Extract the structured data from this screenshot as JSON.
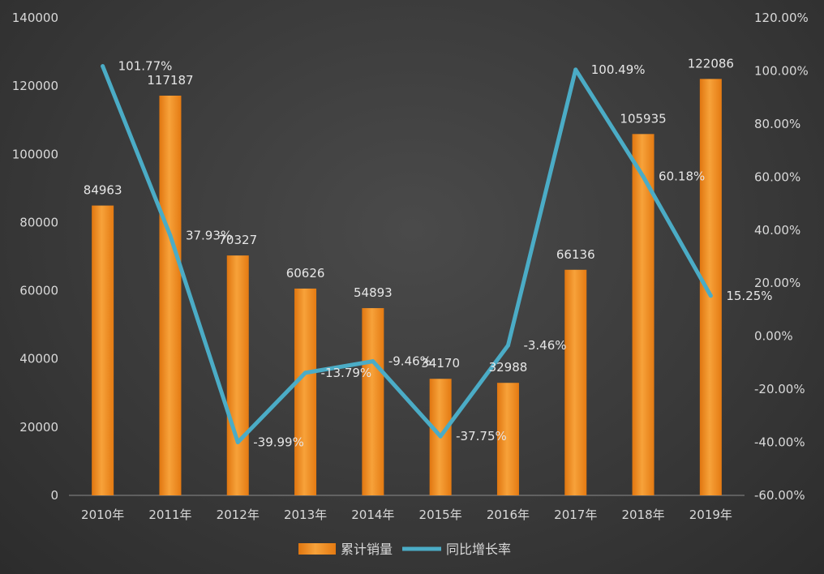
{
  "chart_data": {
    "type": "bar",
    "categories": [
      "2010年",
      "2011年",
      "2012年",
      "2013年",
      "2014年",
      "2015年",
      "2016年",
      "2017年",
      "2018年",
      "2019年"
    ],
    "series": [
      {
        "name": "累计销量",
        "type": "bar",
        "axis": "left",
        "values": [
          84963,
          117187,
          70327,
          60626,
          54893,
          34170,
          32988,
          66136,
          105935,
          122086
        ],
        "labels": [
          "84963",
          "117187",
          "70327",
          "60626",
          "54893",
          "34170",
          "32988",
          "66136",
          "105935",
          "122086"
        ],
        "color": "#f08a1e"
      },
      {
        "name": "同比增长率",
        "type": "line",
        "axis": "right",
        "values": [
          101.77,
          37.93,
          -39.99,
          -13.79,
          -9.46,
          -37.75,
          -3.46,
          100.49,
          60.18,
          15.25
        ],
        "labels": [
          "101.77%",
          "37.93%",
          "-39.99%",
          "-13.79%",
          "-9.46%",
          "-37.75%",
          "-3.46%",
          "100.49%",
          "60.18%",
          "15.25%"
        ],
        "color": "#4bacc6"
      }
    ],
    "y_left": {
      "range": [
        0,
        140000
      ],
      "ticks": [
        "0",
        "20000",
        "40000",
        "60000",
        "80000",
        "100000",
        "120000",
        "140000"
      ]
    },
    "y_right": {
      "range": [
        -60,
        120
      ],
      "ticks": [
        "-60.00%",
        "-40.00%",
        "-20.00%",
        "0.00%",
        "20.00%",
        "40.00%",
        "60.00%",
        "80.00%",
        "100.00%",
        "120.00%"
      ]
    },
    "grid": false,
    "legend": "bottom"
  }
}
